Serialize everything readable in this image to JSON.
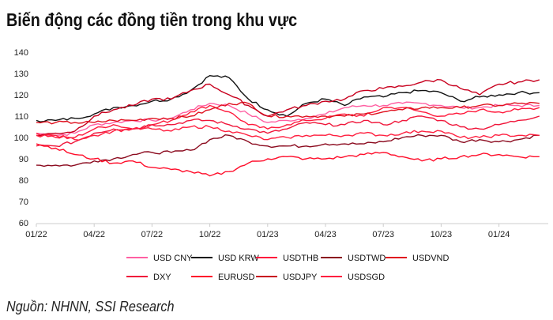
{
  "chart_data": {
    "type": "line",
    "title": "Biến động các đồng tiền trong khu vực",
    "source": "Nguồn: NHNN, SSI Research",
    "xlabel": "",
    "ylabel": "",
    "ylim": [
      60,
      140
    ],
    "yticks": [
      60,
      70,
      80,
      90,
      100,
      110,
      120,
      130,
      140
    ],
    "xtick_labels": [
      "01/22",
      "04/22",
      "07/22",
      "10/22",
      "01/23",
      "04/23",
      "07/23",
      "10/23",
      "01/24"
    ],
    "x_months": [
      "01/22",
      "02/22",
      "03/22",
      "04/22",
      "05/22",
      "06/22",
      "07/22",
      "08/22",
      "09/22",
      "10/22",
      "11/22",
      "12/22",
      "01/23",
      "02/23",
      "03/23",
      "04/23",
      "05/23",
      "06/23",
      "07/23",
      "08/23",
      "09/23",
      "10/23",
      "11/23",
      "12/23",
      "01/24",
      "02/24",
      "03/24"
    ],
    "grid": false,
    "legend_position": "bottom",
    "series": [
      {
        "name": "USD CNY",
        "color": "#ff5fa2",
        "values": [
          102,
          101,
          102,
          106,
          107,
          108,
          108,
          109,
          113,
          116,
          115,
          111,
          107,
          108,
          109,
          111,
          114,
          115,
          115,
          116,
          116,
          115,
          114,
          114,
          115,
          115,
          115
        ]
      },
      {
        "name": "USD KRW",
        "color": "#111111",
        "values": [
          108,
          108,
          109,
          111,
          114,
          115,
          117,
          118,
          122,
          129,
          128,
          118,
          113,
          110,
          116,
          118,
          115,
          119,
          119,
          121,
          122,
          121,
          117,
          119,
          120,
          121,
          121
        ]
      },
      {
        "name": "USDTHB",
        "color": "#ff1a3c",
        "values": [
          102,
          100,
          100,
          104,
          106,
          104,
          106,
          108,
          112,
          115,
          112,
          106,
          104,
          106,
          108,
          109,
          111,
          110,
          114,
          114,
          112,
          110,
          111,
          113,
          112,
          113,
          114
        ]
      },
      {
        "name": "USDTWD",
        "color": "#8b0a1e",
        "values": [
          87,
          87,
          87,
          89,
          90,
          92,
          93,
          93,
          94,
          99,
          101,
          98,
          96,
          96,
          96,
          97,
          97,
          97,
          98,
          100,
          101,
          101,
          98,
          99,
          98,
          99,
          101
        ]
      },
      {
        "name": "USDVND",
        "color": "#e0101e",
        "values": [
          107,
          107,
          107,
          107,
          108,
          108,
          109,
          109,
          110,
          113,
          116,
          116,
          110,
          110,
          110,
          110,
          110,
          111,
          112,
          113,
          114,
          114,
          114,
          115,
          115,
          116,
          116
        ]
      },
      {
        "name": "DXY",
        "color": "#f0163a",
        "values": [
          96,
          96,
          98,
          102,
          104,
          104,
          106,
          106,
          108,
          108,
          106,
          104,
          102,
          104,
          107,
          106,
          106,
          108,
          106,
          108,
          110,
          108,
          105,
          104,
          106,
          108,
          110
        ]
      },
      {
        "name": "EURUSD",
        "color": "#ff0d2a",
        "values": [
          97,
          95,
          92,
          90,
          88,
          89,
          86,
          85,
          84,
          82,
          84,
          88,
          90,
          91,
          90,
          90,
          91,
          92,
          93,
          91,
          89,
          90,
          91,
          92,
          92,
          91,
          91
        ]
      },
      {
        "name": "USDJPY",
        "color": "#c8001e",
        "values": [
          101,
          102,
          103,
          110,
          113,
          115,
          118,
          118,
          122,
          125,
          120,
          115,
          110,
          113,
          115,
          117,
          118,
          122,
          123,
          124,
          126,
          127,
          123,
          120,
          125,
          126,
          127
        ]
      },
      {
        "name": "USDSGD",
        "color": "#ff2040",
        "values": [
          101,
          101,
          99,
          101,
          103,
          104,
          104,
          103,
          105,
          105,
          103,
          101,
          99,
          100,
          101,
          101,
          101,
          102,
          101,
          102,
          103,
          103,
          100,
          100,
          101,
          101,
          101
        ]
      }
    ]
  }
}
